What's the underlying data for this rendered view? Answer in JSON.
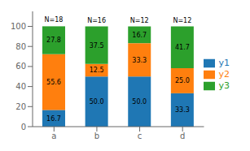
{
  "chart_data": {
    "type": "bar",
    "stacked": true,
    "categories": [
      "a",
      "b",
      "c",
      "d"
    ],
    "series": [
      {
        "name": "y1",
        "color": "#1f77b4",
        "values": [
          16.7,
          50.0,
          50.0,
          33.3
        ],
        "value_labels": [
          "16.7",
          "50.0",
          "50.0",
          "33.3"
        ]
      },
      {
        "name": "y2",
        "color": "#ff7f0e",
        "values": [
          55.6,
          12.5,
          33.3,
          25.0
        ],
        "value_labels": [
          "55.6",
          "12.5",
          "33.3",
          "25.0"
        ]
      },
      {
        "name": "y3",
        "color": "#2ca02c",
        "values": [
          27.8,
          37.5,
          16.7,
          41.7
        ],
        "value_labels": [
          "27.8",
          "37.5",
          "16.7",
          "41.7"
        ]
      }
    ],
    "annotations": [
      "N=18",
      "N=16",
      "N=12",
      "N=12"
    ],
    "ylim": [
      0,
      115
    ],
    "yticks": [
      0,
      20,
      40,
      60,
      80,
      100
    ],
    "data_labels": true,
    "grid": false,
    "legend": "right"
  }
}
